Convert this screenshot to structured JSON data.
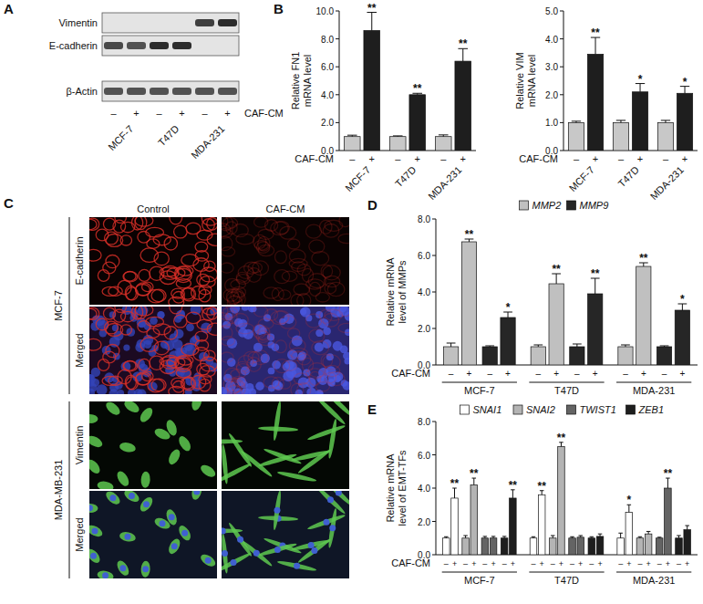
{
  "blot": {
    "panel_label": "A",
    "rows": [
      {
        "label": "Vimentin",
        "signal": [
          0,
          0,
          0,
          0,
          0.85,
          0.95
        ]
      },
      {
        "label": "E-cadherin",
        "signal": [
          0.8,
          0.75,
          0.95,
          0.95,
          0,
          0
        ]
      },
      {
        "label": "β-Actin",
        "signal": [
          0.75,
          0.75,
          0.75,
          0.75,
          0.75,
          0.75
        ]
      }
    ],
    "categories": [
      "MCF-7",
      "T47D",
      "MDA-231"
    ],
    "conditions": [
      "–",
      "+"
    ],
    "xlabel": "CAF-CM"
  },
  "micrographs": {
    "panel_label": "C",
    "columns": [
      "Control",
      "CAF-CM"
    ],
    "groups": [
      {
        "label": "MCF-7",
        "rows": [
          "E-cadherin",
          "Merged"
        ]
      },
      {
        "label": "MDA-MB-231",
        "rows": [
          "Vimentin",
          "Merged"
        ]
      }
    ]
  },
  "chart_data": [
    {
      "type": "bar",
      "panel_label": "B",
      "ylabel": [
        "Relative FN1",
        "mRNA level"
      ],
      "categories": [
        "MCF-7",
        "T47D",
        "MDA-231"
      ],
      "conditions": [
        "–",
        "+"
      ],
      "xlabel": "CAF-CM",
      "ylim": [
        0,
        10
      ],
      "yticks": [
        {
          "value": 0,
          "label": "0.0"
        },
        {
          "value": 2,
          "label": "2.0"
        },
        {
          "value": 4,
          "label": "4.0"
        },
        {
          "value": 6,
          "label": "6.0"
        },
        {
          "value": 8,
          "label": "8.0"
        },
        {
          "value": 10,
          "label": "10.0"
        }
      ],
      "series": [
        {
          "colors": [
            "#c8c8c8",
            "#1e1e1e"
          ],
          "values": [
            [
              1.0,
              8.6
            ],
            [
              1.0,
              4.0
            ],
            [
              1.0,
              6.4
            ]
          ],
          "errors": [
            [
              0.1,
              1.3
            ],
            [
              0.05,
              0.1
            ],
            [
              0.12,
              0.9
            ]
          ],
          "significance": [
            [
              null,
              "**"
            ],
            [
              null,
              "**"
            ],
            [
              null,
              "**"
            ]
          ]
        }
      ]
    },
    {
      "type": "bar",
      "ylabel": [
        "Relative VIM",
        "mRNA level"
      ],
      "categories": [
        "MCF-7",
        "T47D",
        "MDA-231"
      ],
      "conditions": [
        "–",
        "+"
      ],
      "xlabel": "CAF-CM",
      "ylim": [
        0,
        5
      ],
      "yticks": [
        {
          "value": 0,
          "label": "0.0"
        },
        {
          "value": 1,
          "label": "1.0"
        },
        {
          "value": 2,
          "label": "2.0"
        },
        {
          "value": 3,
          "label": "3.0"
        },
        {
          "value": 4,
          "label": "4.0"
        },
        {
          "value": 5,
          "label": "5.0"
        }
      ],
      "series": [
        {
          "colors": [
            "#c8c8c8",
            "#1e1e1e"
          ],
          "values": [
            [
              1.0,
              3.45
            ],
            [
              1.0,
              2.1
            ],
            [
              1.0,
              2.05
            ]
          ],
          "errors": [
            [
              0.05,
              0.6
            ],
            [
              0.08,
              0.3
            ],
            [
              0.08,
              0.25
            ]
          ],
          "significance": [
            [
              null,
              "**"
            ],
            [
              null,
              "*"
            ],
            [
              null,
              "*"
            ]
          ]
        }
      ]
    },
    {
      "type": "bar",
      "panel_label": "D",
      "ylabel": [
        "Relative mRNA",
        "level of MMPs"
      ],
      "categories": [
        "MCF-7",
        "T47D",
        "MDA-231"
      ],
      "conditions": [
        "–",
        "+"
      ],
      "xlabel": "CAF-CM",
      "legend": "top",
      "ylim": [
        0,
        8
      ],
      "yticks": [
        {
          "value": 0,
          "label": "0.0"
        },
        {
          "value": 2,
          "label": "2.0"
        },
        {
          "value": 4,
          "label": "4.0"
        },
        {
          "value": 6,
          "label": "6.0"
        },
        {
          "value": 8,
          "label": "8.0"
        }
      ],
      "series": [
        {
          "name": "MMP2",
          "color": "#c0c0c0",
          "values": [
            [
              1.0,
              6.75
            ],
            [
              1.0,
              4.45
            ],
            [
              1.0,
              5.4
            ]
          ],
          "errors": [
            [
              0.2,
              0.15
            ],
            [
              0.1,
              0.55
            ],
            [
              0.1,
              0.2
            ]
          ],
          "significance": [
            [
              null,
              "**"
            ],
            [
              null,
              "**"
            ],
            [
              null,
              "**"
            ]
          ]
        },
        {
          "name": "MMP9",
          "color": "#262626",
          "values": [
            [
              1.0,
              2.6
            ],
            [
              1.0,
              3.9
            ],
            [
              1.0,
              3.0
            ]
          ],
          "errors": [
            [
              0.05,
              0.3
            ],
            [
              0.15,
              0.85
            ],
            [
              0.05,
              0.35
            ]
          ],
          "significance": [
            [
              null,
              "*"
            ],
            [
              null,
              "**"
            ],
            [
              null,
              "*"
            ]
          ]
        }
      ]
    },
    {
      "type": "bar",
      "panel_label": "E",
      "ylabel": [
        "Relative mRNA",
        "level of EMT-TFs"
      ],
      "categories": [
        "MCF-7",
        "T47D",
        "MDA-231"
      ],
      "conditions": [
        "–",
        "+"
      ],
      "xlabel": "CAF-CM",
      "legend": "top",
      "ylim": [
        0,
        8
      ],
      "yticks": [
        {
          "value": 0,
          "label": "0.0"
        },
        {
          "value": 2,
          "label": "2.0"
        },
        {
          "value": 4,
          "label": "4.0"
        },
        {
          "value": 6,
          "label": "6.0"
        },
        {
          "value": 8,
          "label": "8.0"
        }
      ],
      "series": [
        {
          "name": "SNAI1",
          "color": "#ffffff",
          "values": [
            [
              1.0,
              3.4
            ],
            [
              1.0,
              3.6
            ],
            [
              1.0,
              2.55
            ]
          ],
          "errors": [
            [
              0.08,
              0.6
            ],
            [
              0.08,
              0.25
            ],
            [
              0.3,
              0.45
            ]
          ],
          "significance": [
            [
              null,
              "**"
            ],
            [
              null,
              "**"
            ],
            [
              null,
              "*"
            ]
          ]
        },
        {
          "name": "SNAI2",
          "color": "#b4b4b4",
          "values": [
            [
              1.0,
              4.2
            ],
            [
              1.0,
              6.5
            ],
            [
              1.0,
              1.25
            ]
          ],
          "errors": [
            [
              0.15,
              0.4
            ],
            [
              0.15,
              0.25
            ],
            [
              0.08,
              0.15
            ]
          ],
          "significance": [
            [
              null,
              "**"
            ],
            [
              null,
              "**"
            ],
            [
              null,
              null
            ]
          ]
        },
        {
          "name": "TWIST1",
          "color": "#646464",
          "values": [
            [
              1.0,
              1.0
            ],
            [
              1.0,
              1.05
            ],
            [
              1.0,
              4.0
            ]
          ],
          "errors": [
            [
              0.1,
              0.1
            ],
            [
              0.08,
              0.1
            ],
            [
              0.05,
              0.6
            ]
          ],
          "significance": [
            [
              null,
              null
            ],
            [
              null,
              null
            ],
            [
              null,
              "**"
            ]
          ]
        },
        {
          "name": "ZEB1",
          "color": "#1e1e1e",
          "values": [
            [
              1.0,
              3.4
            ],
            [
              1.0,
              1.1
            ],
            [
              1.0,
              1.5
            ]
          ],
          "errors": [
            [
              0.1,
              0.5
            ],
            [
              0.08,
              0.15
            ],
            [
              0.15,
              0.25
            ]
          ],
          "significance": [
            [
              null,
              "**"
            ],
            [
              null,
              null
            ],
            [
              null,
              null
            ]
          ]
        }
      ]
    }
  ]
}
